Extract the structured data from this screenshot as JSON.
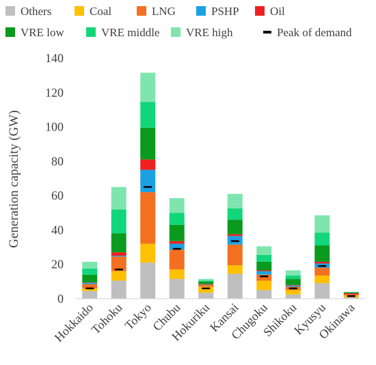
{
  "chart_data": {
    "type": "bar",
    "stacked": true,
    "title": "",
    "xlabel": "",
    "ylabel": "Generation capacity (GW)",
    "ylim": [
      0,
      140
    ],
    "yticks": [
      0,
      20,
      40,
      60,
      80,
      100,
      120,
      140
    ],
    "grid": false,
    "legend_position": "top",
    "categories": [
      "Hokkaido",
      "Tohoku",
      "Tokyo",
      "Chubu",
      "Hokuriku",
      "Kansai",
      "Chugoku",
      "Shikoku",
      "Kyusyu",
      "Okinawa"
    ],
    "series": [
      {
        "name": "Others",
        "color": "#BFBFBF",
        "values": [
          4.5,
          10.5,
          21,
          11.5,
          3.5,
          14.5,
          5,
          2.5,
          9,
          0.8
        ]
      },
      {
        "name": "Coal",
        "color": "#FFC000",
        "values": [
          1.5,
          5.5,
          11,
          5.5,
          3.5,
          5,
          5.5,
          2.5,
          4.5,
          1.2
        ]
      },
      {
        "name": "LNG",
        "color": "#F37021",
        "values": [
          2.5,
          8.5,
          30,
          11.5,
          1,
          12,
          3.5,
          2,
          4.5,
          0.6
        ]
      },
      {
        "name": "PSHP",
        "color": "#1BA1E2",
        "values": [
          0.8,
          0.5,
          13,
          3.5,
          0.2,
          5,
          2,
          0.7,
          2.5,
          0
        ]
      },
      {
        "name": "Oil",
        "color": "#F02020",
        "values": [
          0.2,
          2,
          6,
          1.5,
          0.3,
          1,
          0.5,
          0.3,
          1,
          0.6
        ]
      },
      {
        "name": "VRE low",
        "color": "#0A9A1E",
        "values": [
          4.5,
          11,
          18.5,
          9.5,
          1.5,
          8.5,
          5,
          3.5,
          9.5,
          0.4
        ]
      },
      {
        "name": "VRE middle",
        "color": "#12D67A",
        "values": [
          3.5,
          14,
          15,
          7,
          0.6,
          6.5,
          4,
          2,
          7.5,
          0.3
        ]
      },
      {
        "name": "VRE high",
        "color": "#7FE5AF",
        "values": [
          4,
          13,
          17,
          8.5,
          0.9,
          8.5,
          5,
          3,
          10,
          0.1
        ]
      }
    ],
    "peak_of_demand": {
      "name": "Peak of demand",
      "color": "#000000",
      "values": [
        6,
        17,
        65,
        29,
        6,
        33.5,
        13,
        6,
        19,
        1.5
      ]
    }
  },
  "legend": {
    "items": [
      {
        "label": "Others",
        "color": "#BFBFBF",
        "kind": "swatch"
      },
      {
        "label": "Coal",
        "color": "#FFC000",
        "kind": "swatch"
      },
      {
        "label": "LNG",
        "color": "#F37021",
        "kind": "swatch"
      },
      {
        "label": "PSHP",
        "color": "#1BA1E2",
        "kind": "swatch"
      },
      {
        "label": "Oil",
        "color": "#F02020",
        "kind": "swatch"
      },
      {
        "label": "VRE low",
        "color": "#0A9A1E",
        "kind": "swatch"
      },
      {
        "label": "VRE middle",
        "color": "#12D67A",
        "kind": "swatch"
      },
      {
        "label": "VRE high",
        "color": "#7FE5AF",
        "kind": "swatch"
      },
      {
        "label": "Peak of demand",
        "color": "#000000",
        "kind": "dash"
      }
    ]
  }
}
